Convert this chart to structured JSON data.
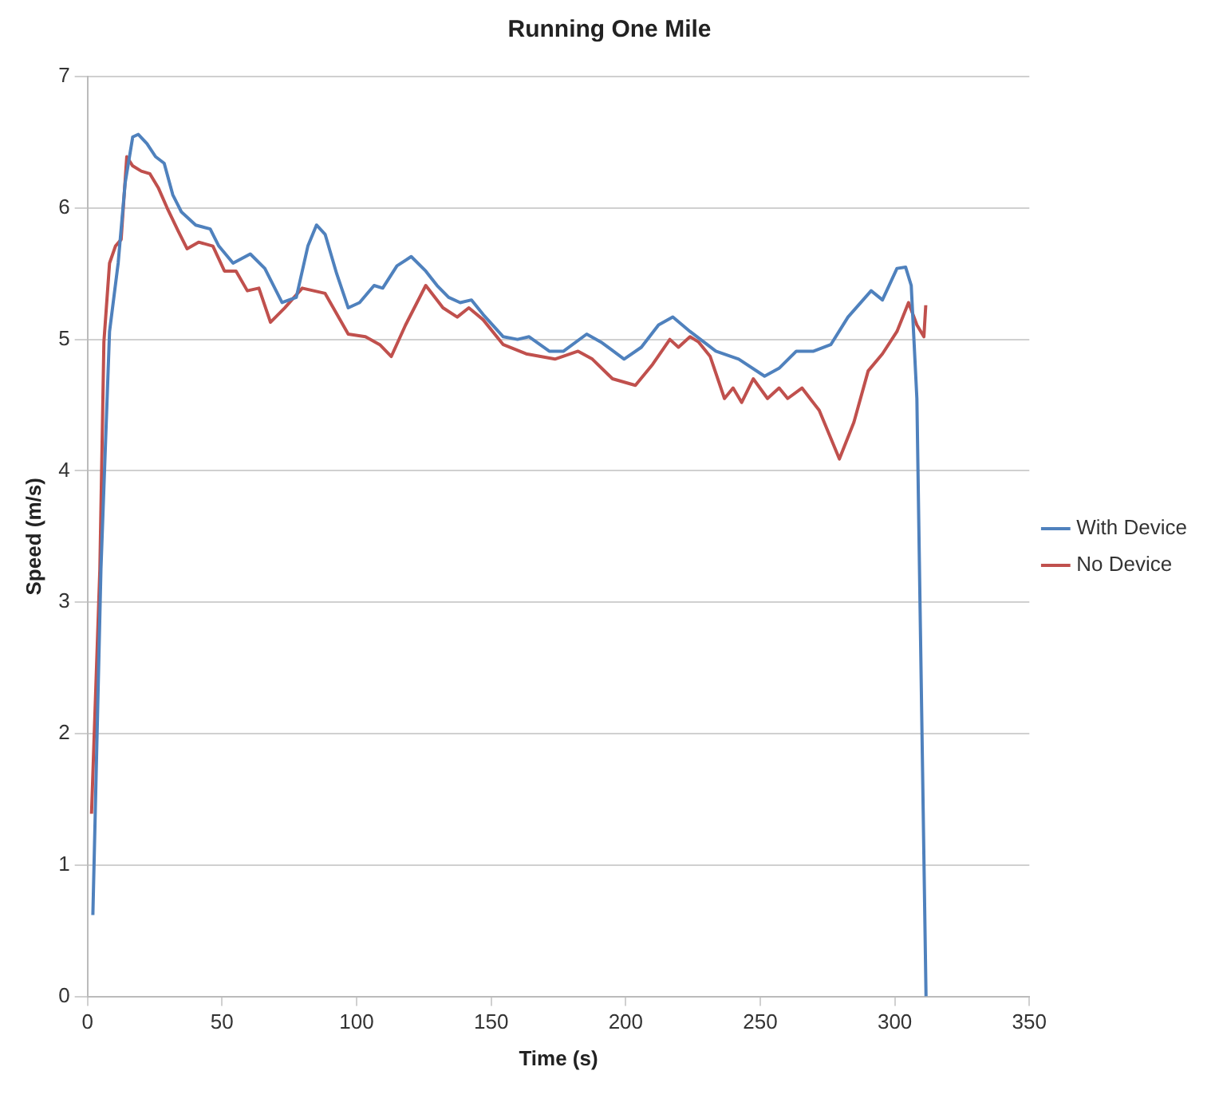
{
  "chart_data": {
    "type": "line",
    "title": "Running One Mile",
    "xlabel": "Time (s)",
    "ylabel": "Speed (m/s)",
    "xlim": [
      0,
      350
    ],
    "xticks": [
      0,
      50,
      100,
      150,
      200,
      250,
      300,
      350
    ],
    "ylim": [
      0,
      7
    ],
    "yticks": [
      0,
      1,
      2,
      3,
      4,
      5,
      6,
      7
    ],
    "grid": "y",
    "legend": "right",
    "marker": "none",
    "line_style": "solid",
    "series": [
      {
        "name": "With Device",
        "color": "#4f81bd",
        "x": [
          2,
          5,
          8.2,
          11.4,
          14,
          16.8,
          18.9,
          22.1,
          25.3,
          28.5,
          31.7,
          34.9,
          40.2,
          45.6,
          48.8,
          54.1,
          60.5,
          65.9,
          72.3,
          77.6,
          81.9,
          85.1,
          88.3,
          92.6,
          96.9,
          101.1,
          106.5,
          109.7,
          115,
          120.3,
          125.7,
          129.9,
          134.2,
          138.5,
          142.7,
          147,
          154.5,
          159.8,
          164.1,
          171.6,
          176.9,
          185.5,
          190.8,
          199.4,
          205.8,
          212.2,
          217.5,
          223.9,
          233.5,
          242,
          251.6,
          257,
          263.4,
          269.8,
          276.2,
          282.6,
          291.2,
          295.4,
          300.8,
          304,
          306.1,
          308.2,
          311.6
        ],
        "values": [
          0.62,
          3.25,
          5.06,
          5.58,
          6.19,
          6.54,
          6.56,
          6.49,
          6.39,
          6.34,
          6.1,
          5.97,
          5.87,
          5.84,
          5.71,
          5.58,
          5.65,
          5.54,
          5.28,
          5.32,
          5.71,
          5.87,
          5.8,
          5.5,
          5.24,
          5.28,
          5.41,
          5.39,
          5.56,
          5.63,
          5.52,
          5.41,
          5.32,
          5.28,
          5.3,
          5.19,
          5.02,
          5,
          5.02,
          4.91,
          4.91,
          5.04,
          4.98,
          4.85,
          4.94,
          5.11,
          5.17,
          5.06,
          4.91,
          4.85,
          4.72,
          4.78,
          4.91,
          4.91,
          4.96,
          5.17,
          5.37,
          5.3,
          5.54,
          5.55,
          5.41,
          4.55,
          0
        ]
      },
      {
        "name": "No Device",
        "color": "#c0504d",
        "x": [
          1.5,
          4.6,
          6.1,
          8.2,
          10.4,
          12.5,
          14.6,
          16.8,
          20,
          23.2,
          26.4,
          29.6,
          33.8,
          37,
          41.3,
          46.6,
          50.9,
          55.2,
          59.4,
          63.7,
          68,
          73.3,
          79.8,
          88.3,
          96.9,
          103.3,
          108.6,
          112.9,
          118.2,
          125.7,
          132.1,
          137.4,
          141.7,
          147,
          154.5,
          163,
          173.7,
          182.3,
          187.6,
          195.1,
          203.6,
          210,
          216.4,
          219.6,
          223.9,
          227.1,
          231.4,
          236.7,
          239.9,
          243.1,
          247.4,
          252.7,
          257,
          260.2,
          265.5,
          271.9,
          279.4,
          284.8,
          290.1,
          295.4,
          300.8,
          305.1,
          308.2,
          310.8,
          311.5
        ],
        "values": [
          1.39,
          3.25,
          4.98,
          5.58,
          5.71,
          5.76,
          6.39,
          6.32,
          6.28,
          6.26,
          6.15,
          6,
          5.82,
          5.69,
          5.74,
          5.71,
          5.52,
          5.52,
          5.37,
          5.39,
          5.13,
          5.24,
          5.39,
          5.35,
          5.04,
          5.02,
          4.96,
          4.87,
          5.11,
          5.41,
          5.24,
          5.17,
          5.24,
          5.15,
          4.96,
          4.89,
          4.85,
          4.91,
          4.85,
          4.7,
          4.65,
          4.81,
          5,
          4.94,
          5.02,
          4.98,
          4.87,
          4.55,
          4.63,
          4.52,
          4.7,
          4.55,
          4.63,
          4.55,
          4.63,
          4.46,
          4.09,
          4.37,
          4.76,
          4.89,
          5.06,
          5.28,
          5.11,
          5.02,
          5.26
        ]
      }
    ]
  }
}
